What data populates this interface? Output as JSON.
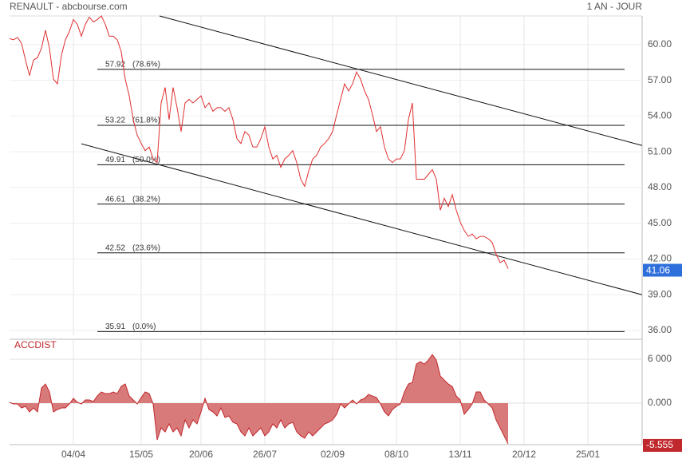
{
  "chart_data": [
    {
      "type": "line",
      "title": "RENAULT - abcbourse.com",
      "subtitle": "1 AN - JOUR",
      "xlim": [
        0,
        158.6
      ],
      "ylim": [
        35.6,
        62.4
      ],
      "xticks": [
        {
          "value": 16,
          "label": "04/04"
        },
        {
          "value": 33,
          "label": "15/05"
        },
        {
          "value": 48,
          "label": "20/06"
        },
        {
          "value": 64,
          "label": "26/07"
        },
        {
          "value": 81,
          "label": "02/09"
        },
        {
          "value": 97,
          "label": "08/10"
        },
        {
          "value": 113,
          "label": "13/11"
        },
        {
          "value": 129,
          "label": "20/12"
        },
        {
          "value": 145,
          "label": "25/01"
        }
      ],
      "yticks": [
        {
          "value": 36,
          "label": "36.00"
        },
        {
          "value": 39,
          "label": "39.00"
        },
        {
          "value": 42,
          "label": "42.00"
        },
        {
          "value": 45,
          "label": "45.00"
        },
        {
          "value": 48,
          "label": "48.00"
        },
        {
          "value": 51,
          "label": "51.00"
        },
        {
          "value": 54,
          "label": "54.00"
        },
        {
          "value": 57,
          "label": "57.00"
        },
        {
          "value": 60,
          "label": "60.00"
        }
      ],
      "grid": true,
      "series": [
        {
          "name": "RENAULT",
          "color": "#e03030",
          "values": [
            60.5,
            60.4,
            60.6,
            60.1,
            58.7,
            57.4,
            58.7,
            58.9,
            59.7,
            61.2,
            59.7,
            57.1,
            56.7,
            59.1,
            60.4,
            61.1,
            62.1,
            61.7,
            60.7,
            61.7,
            62.3,
            61.9,
            62.1,
            62.4,
            61.7,
            60.7,
            60.7,
            60.4,
            59.4,
            57.1,
            55.7,
            53.7,
            52.4,
            51.7,
            51.1,
            51.4,
            50.4,
            50.1,
            55.1,
            56.4,
            53.7,
            56.4,
            54.7,
            52.7,
            55.1,
            55.4,
            55.1,
            55.4,
            55.7,
            54.7,
            55.1,
            54.4,
            54.7,
            54.7,
            54.4,
            54.7,
            53.7,
            52.1,
            51.7,
            52.7,
            52.4,
            51.4,
            51.4,
            52.1,
            53.1,
            51.4,
            50.4,
            50.7,
            49.7,
            50.4,
            50.7,
            51.1,
            50.1,
            48.7,
            48.1,
            49.4,
            50.4,
            50.7,
            51.4,
            51.7,
            52.1,
            52.7,
            54.1,
            55.4,
            56.7,
            56.1,
            56.7,
            57.7,
            57.1,
            56.1,
            55.4,
            54.1,
            52.7,
            53.1,
            51.4,
            50.4,
            50.1,
            50.4,
            50.4,
            51.1,
            53.7,
            55.1,
            48.7,
            48.7,
            48.7,
            49.1,
            49.5,
            48.7,
            46.1,
            47.1,
            46.4,
            47.4,
            46.1,
            45.1,
            44.4,
            43.9,
            44.1,
            43.7,
            43.9,
            43.9,
            43.7,
            43.4,
            42.4,
            41.7,
            41.9,
            41.2
          ]
        }
      ],
      "last_value": 41.06,
      "last_color": "#2f6fdc",
      "fib_levels": [
        {
          "value": 57.92,
          "ratio": "(78.6%)"
        },
        {
          "value": 53.22,
          "ratio": "(61.8%)"
        },
        {
          "value": 49.91,
          "ratio": "(50.0%)"
        },
        {
          "value": 46.61,
          "ratio": "(38.2%)"
        },
        {
          "value": 42.52,
          "ratio": "(23.6%)"
        },
        {
          "value": 35.91,
          "ratio": "(0.0%)"
        }
      ],
      "fib_start": 22,
      "trendlines": [
        {
          "x": [
            37.6,
            158.6
          ],
          "y": [
            62.4,
            51.53
          ]
        },
        {
          "x": [
            18,
            158.6
          ],
          "y": [
            51.67,
            39.0
          ]
        }
      ]
    },
    {
      "type": "area",
      "title": "ACCDIST",
      "xlim": [
        0,
        158.6
      ],
      "ylim": [
        -5670,
        8730
      ],
      "yticks": [
        {
          "value": 0,
          "label": "0.000"
        },
        {
          "value": 6000,
          "label": "6 000"
        }
      ],
      "series": [
        {
          "name": "ACCDIST",
          "color": "#c0282d",
          "fill": "#d97a7a",
          "values": [
            109,
            -109,
            -109,
            -654,
            -436,
            -1199,
            -654,
            -1199,
            2071,
            2616,
            1526,
            -1199,
            -872,
            -654,
            -654,
            -109,
            654,
            109,
            -109,
            436,
            436,
            218,
            981,
            1526,
            1308,
            1308,
            1526,
            1308,
            2289,
            2616,
            981,
            436,
            -109,
            763,
            1526,
            1308,
            -109,
            -5014,
            -3379,
            -3924,
            -2834,
            -3924,
            -3379,
            -4469,
            -2289,
            -3379,
            -2289,
            -2834,
            -1199,
            654,
            -872,
            -1199,
            -1744,
            -654,
            -1962,
            -1744,
            -2616,
            -2834,
            -3924,
            -4469,
            -3379,
            -4469,
            -3924,
            -3379,
            -4469,
            -3924,
            -2834,
            -3379,
            -2289,
            -3379,
            -2834,
            -2616,
            -3924,
            -4469,
            -4796,
            -3924,
            -4469,
            -3924,
            -3379,
            -2834,
            -2616,
            -2289,
            -1526,
            -109,
            -654,
            -109,
            436,
            -109,
            436,
            654,
            1199,
            981,
            763,
            -109,
            -1199,
            -1744,
            -872,
            -436,
            -109,
            1526,
            2616,
            2834,
            5341,
            5668,
            5341,
            5886,
            6649,
            5886,
            3706,
            3161,
            2616,
            2289,
            981,
            436,
            -1526,
            -872,
            -109,
            1526,
            1526,
            436,
            -109,
            -654,
            -2289,
            -3379,
            -4469,
            -5555
          ]
        }
      ],
      "last_label": {
        "value": -5555,
        "label": "-5.555"
      }
    }
  ]
}
